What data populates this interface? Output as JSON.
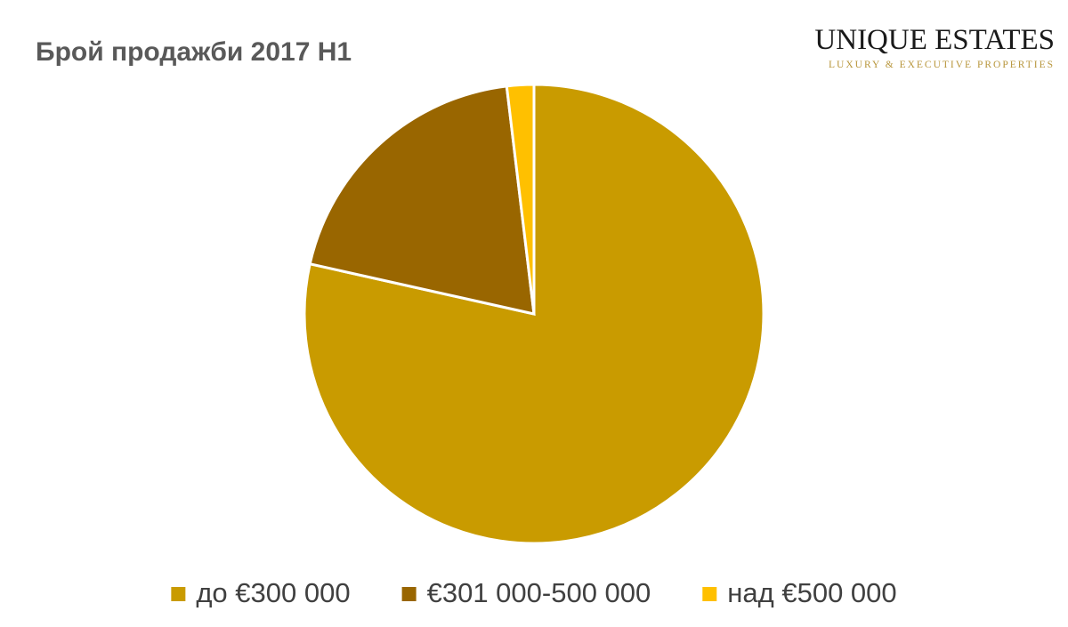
{
  "chart_data": {
    "type": "pie",
    "title": "Брой продажби 2017 H1",
    "categories": [
      "до €300 000",
      "€301 000-500 000",
      "над €500 000"
    ],
    "values": [
      78.5,
      19.6,
      1.9
    ],
    "colors": [
      "#c99b00",
      "#996600",
      "#ffc000"
    ],
    "legend": "bottom"
  },
  "logo": {
    "name": "UNIQUE ESTATES",
    "tagline": "LUXURY & EXECUTIVE PROPERTIES"
  }
}
